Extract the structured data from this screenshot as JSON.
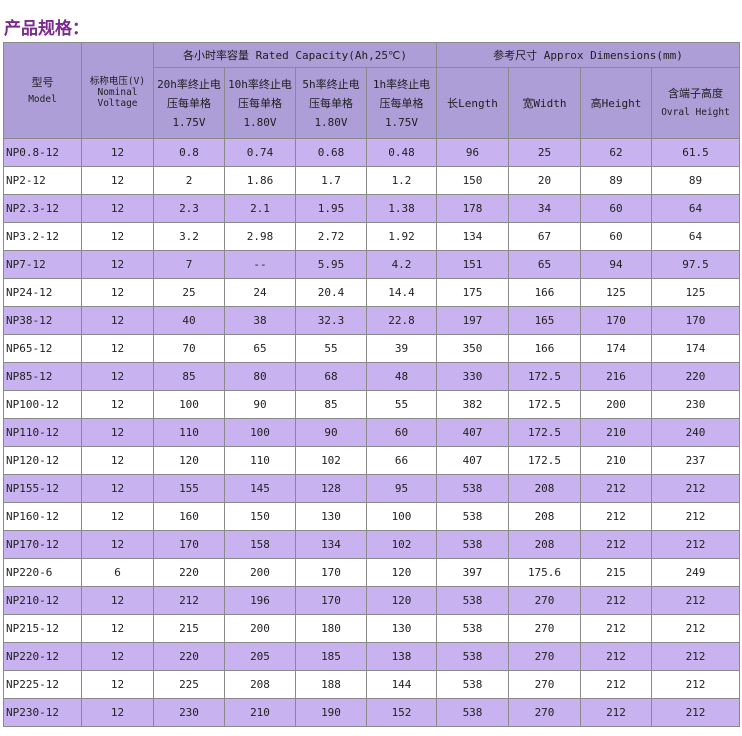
{
  "title": "产品规格：",
  "header": {
    "model_cn": "型号",
    "model_en": "Model",
    "voltage_cn": "标称电压(V)",
    "voltage_en1": "Nominal",
    "voltage_en2": "Voltage",
    "capacity_group": "各小时率容量 Rated Capacity(Ah,25℃)",
    "dimensions_group": "参考尺寸 Approx Dimensions(mm)",
    "cap_cols": [
      {
        "l1": "20h率终止电",
        "l2": "压每单格",
        "l3": "1.75V"
      },
      {
        "l1": "10h率终止电",
        "l2": "压每单格",
        "l3": "1.80V"
      },
      {
        "l1": "5h率终止电",
        "l2": "压每单格",
        "l3": "1.80V"
      },
      {
        "l1": "1h率终止电",
        "l2": "压每单格",
        "l3": "1.75V"
      }
    ],
    "length": "长Length",
    "width": "宽Width",
    "height": "高Height",
    "overall_cn": "含端子高度",
    "overall_en": "Ovral Height"
  },
  "rows": [
    [
      "NP0.8-12",
      "12",
      "0.8",
      "0.74",
      "0.68",
      "0.48",
      "96",
      "25",
      "62",
      "61.5"
    ],
    [
      "NP2-12",
      "12",
      "2",
      "1.86",
      "1.7",
      "1.2",
      "150",
      "20",
      "89",
      "89"
    ],
    [
      "NP2.3-12",
      "12",
      "2.3",
      "2.1",
      "1.95",
      "1.38",
      "178",
      "34",
      "60",
      "64"
    ],
    [
      "NP3.2-12",
      "12",
      "3.2",
      "2.98",
      "2.72",
      "1.92",
      "134",
      "67",
      "60",
      "64"
    ],
    [
      "NP7-12",
      "12",
      "7",
      "--",
      "5.95",
      "4.2",
      "151",
      "65",
      "94",
      "97.5"
    ],
    [
      "NP24-12",
      "12",
      "25",
      "24",
      "20.4",
      "14.4",
      "175",
      "166",
      "125",
      "125"
    ],
    [
      "NP38-12",
      "12",
      "40",
      "38",
      "32.3",
      "22.8",
      "197",
      "165",
      "170",
      "170"
    ],
    [
      "NP65-12",
      "12",
      "70",
      "65",
      "55",
      "39",
      "350",
      "166",
      "174",
      "174"
    ],
    [
      "NP85-12",
      "12",
      "85",
      "80",
      "68",
      "48",
      "330",
      "172.5",
      "216",
      "220"
    ],
    [
      "NP100-12",
      "12",
      "100",
      "90",
      "85",
      "55",
      "382",
      "172.5",
      "200",
      "230"
    ],
    [
      "NP110-12",
      "12",
      "110",
      "100",
      "90",
      "60",
      "407",
      "172.5",
      "210",
      "240"
    ],
    [
      "NP120-12",
      "12",
      "120",
      "110",
      "102",
      "66",
      "407",
      "172.5",
      "210",
      "237"
    ],
    [
      "NP155-12",
      "12",
      "155",
      "145",
      "128",
      "95",
      "538",
      "208",
      "212",
      "212"
    ],
    [
      "NP160-12",
      "12",
      "160",
      "150",
      "130",
      "100",
      "538",
      "208",
      "212",
      "212"
    ],
    [
      "NP170-12",
      "12",
      "170",
      "158",
      "134",
      "102",
      "538",
      "208",
      "212",
      "212"
    ],
    [
      "NP220-6",
      "6",
      "220",
      "200",
      "170",
      "120",
      "397",
      "175.6",
      "215",
      "249"
    ],
    [
      "NP210-12",
      "12",
      "212",
      "196",
      "170",
      "120",
      "538",
      "270",
      "212",
      "212"
    ],
    [
      "NP215-12",
      "12",
      "215",
      "200",
      "180",
      "130",
      "538",
      "270",
      "212",
      "212"
    ],
    [
      "NP220-12",
      "12",
      "220",
      "205",
      "185",
      "138",
      "538",
      "270",
      "212",
      "212"
    ],
    [
      "NP225-12",
      "12",
      "225",
      "208",
      "188",
      "144",
      "538",
      "270",
      "212",
      "212"
    ],
    [
      "NP230-12",
      "12",
      "230",
      "210",
      "190",
      "152",
      "538",
      "270",
      "212",
      "212"
    ]
  ],
  "colors": {
    "header_bg": "#ad9ed8",
    "stripe_bg": "#c8b2f0",
    "title": "#7b2a8e",
    "border": "#8a8a8a"
  }
}
